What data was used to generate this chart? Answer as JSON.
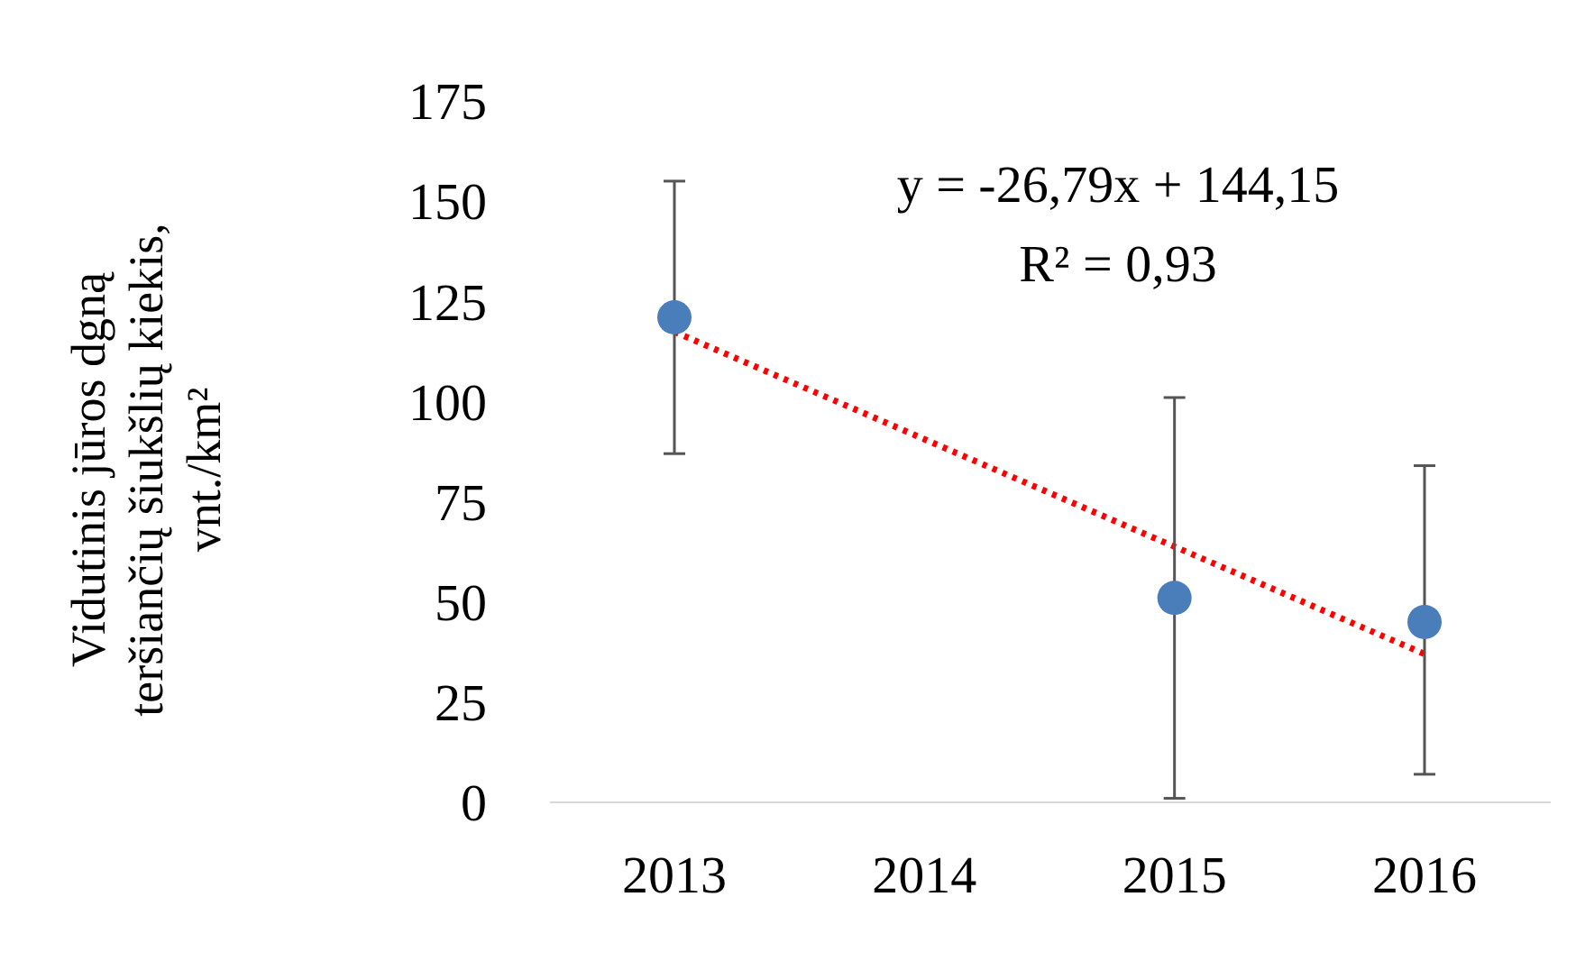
{
  "chart_data": {
    "type": "scatter",
    "ylabel": "Vidutinis jūros dgną teršiančių šiukšlių kiekis, vnt./km²",
    "categories": [
      "2013",
      "2014",
      "2015",
      "2016"
    ],
    "series": [
      {
        "color": "#4a7ebb",
        "marker": "circle",
        "values": [
          121,
          null,
          51,
          45
        ],
        "errors": [
          [
            87,
            155
          ],
          null,
          [
            1,
            101
          ],
          [
            7,
            84
          ]
        ]
      },
      {
        "type": "line",
        "color": "#ff0000",
        "line_style": "dotted",
        "marker": "none",
        "values": [
          117.4,
          90.6,
          63.8,
          37
        ]
      }
    ],
    "annotations": [
      "y = -26,79x + 144,15",
      "R² = 0,93"
    ],
    "ylim": [
      0,
      175
    ],
    "yticks": [
      0,
      25,
      50,
      75,
      100,
      125,
      150,
      175
    ],
    "grid": false
  }
}
